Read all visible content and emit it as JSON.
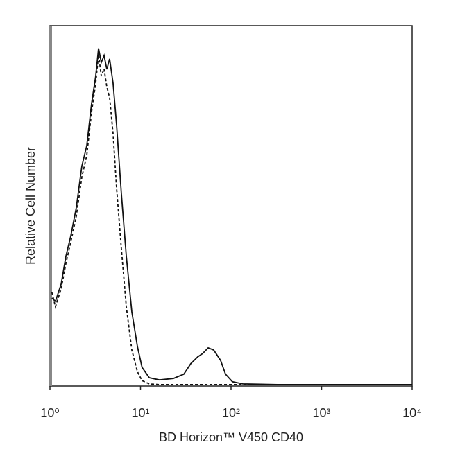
{
  "chart_data": {
    "type": "line",
    "x_label": "BD Horizon™ V450 CD40",
    "y_label": "Relative Cell Number",
    "x_scale": "log",
    "xlim": [
      1,
      10000
    ],
    "xticks": [
      {
        "value": 1,
        "label": "10⁰"
      },
      {
        "value": 10,
        "label": "10¹"
      },
      {
        "value": 100,
        "label": "10²"
      },
      {
        "value": 1000,
        "label": "10³"
      },
      {
        "value": 10000,
        "label": "10⁴"
      }
    ],
    "ylim": [
      0,
      100
    ],
    "x": [
      1.05,
      1.15,
      1.33,
      1.5,
      1.7,
      1.95,
      2.25,
      2.55,
      2.88,
      3.2,
      3.44,
      3.69,
      3.96,
      4.25,
      4.56,
      4.98,
      5.44,
      6.15,
      6.97,
      8.02,
      9.24,
      10.4,
      12.5,
      16.2,
      23.1,
      30.1,
      35.9,
      42.9,
      48.5,
      55.9,
      64.3,
      76.7,
      86.8,
      103.5,
      135,
      326,
      10000
    ],
    "series": [
      {
        "color": "#111111",
        "style": "solid",
        "values": [
          24.4,
          23.5,
          28.3,
          36,
          41.7,
          49.4,
          61,
          66.7,
          78.3,
          86,
          93.7,
          89.8,
          91.7,
          87.9,
          90.8,
          84,
          72.5,
          53.3,
          36,
          20.6,
          11,
          5.2,
          2.3,
          1.7,
          2.1,
          3.3,
          6.2,
          8.1,
          9,
          10.6,
          10,
          7.1,
          3.3,
          1.2,
          0.6,
          0.4,
          0.4
        ]
      },
      {
        "color": "#111111",
        "style": "dashed",
        "values": [
          26,
          22,
          27,
          34,
          40,
          47,
          58,
          64,
          76,
          84,
          92,
          86,
          88,
          83,
          80,
          70,
          55,
          38,
          22,
          10,
          4,
          1.5,
          0.6,
          0.4,
          0.4,
          0.4,
          0.4,
          0.4,
          0.4,
          0.4,
          0.4,
          0.4,
          0.4,
          0.4,
          0.4,
          0.4,
          0.4
        ]
      }
    ]
  }
}
